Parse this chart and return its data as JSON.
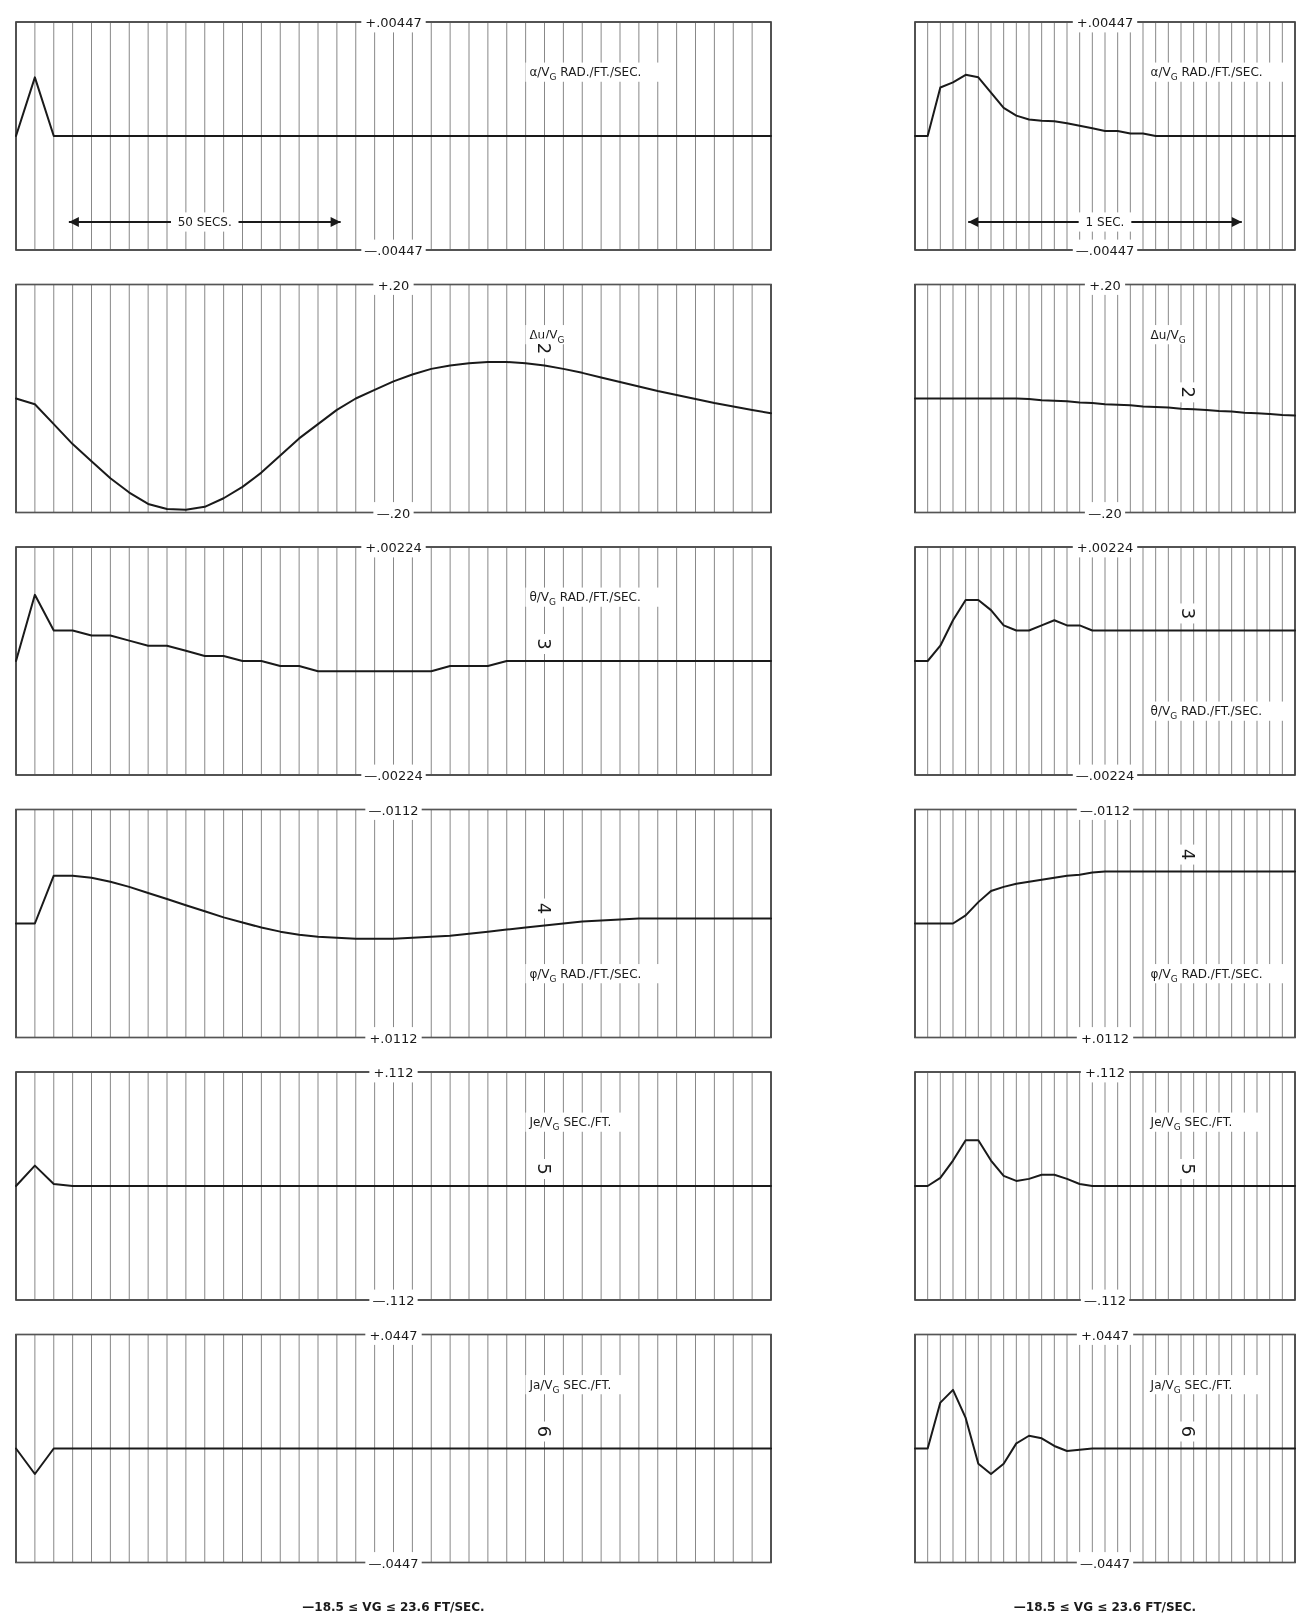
{
  "chart_data": [
    {
      "type": "line",
      "ylabel": "α/V$_{G}$ RAD./FT./SEC.",
      "xlabel": "50 SECS.",
      "categories": [
        null,
        null,
        null,
        null,
        null,
        null,
        null,
        null,
        null,
        null,
        null,
        null,
        null,
        null,
        null,
        null,
        null,
        null,
        null,
        null,
        null,
        null,
        null,
        null,
        null,
        null,
        null,
        null,
        null,
        null,
        null,
        null,
        null,
        null,
        null,
        null,
        null,
        null,
        null,
        null,
        null
      ],
      "series": [
        {
          "color": "#1a1a1a",
          "values": [
            0,
            0.0023,
            0,
            0,
            0,
            0,
            0,
            0,
            0,
            0,
            0,
            0,
            0,
            0,
            0,
            0,
            0,
            0,
            0,
            0,
            0,
            0,
            0,
            0,
            0,
            0,
            0,
            0,
            0,
            0,
            0,
            0,
            0,
            0,
            0,
            0,
            0,
            0,
            0,
            0,
            0
          ]
        }
      ],
      "ylim": [
        -0.00447,
        0.00447
      ],
      "yticks": [
        {
          "value": 0.00447,
          "label": "+.00447"
        },
        {
          "value": -0.00447,
          "label": "—.00447"
        }
      ],
      "tick_labels": "y",
      "grid": true
    },
    {
      "type": "line",
      "ylabel": "α/V$_{G}$ RAD./FT./SEC.",
      "xlabel": "1 SEC.",
      "categories": [
        null,
        null,
        null,
        null,
        null,
        null,
        null,
        null,
        null,
        null,
        null,
        null,
        null,
        null,
        null,
        null,
        null,
        null,
        null,
        null,
        null,
        null,
        null,
        null,
        null,
        null,
        null,
        null,
        null,
        null,
        null
      ],
      "series": [
        {
          "color": "#1a1a1a",
          "values": [
            0,
            0,
            0.0019,
            0.0021,
            0.0024,
            0.0023,
            0.0017,
            0.0011,
            0.0008,
            0.00065,
            0.0006,
            0.00058,
            0.0005,
            0.0004,
            0.0003,
            0.0002,
            0.0002,
            0.0001,
            0.0001,
            0,
            0,
            0,
            0,
            0,
            0,
            0,
            0,
            0,
            0,
            0,
            0
          ]
        }
      ],
      "ylim": [
        -0.00447,
        0.00447
      ],
      "yticks": [
        {
          "value": 0.00447,
          "label": "+.00447"
        },
        {
          "value": -0.00447,
          "label": "—.00447"
        }
      ],
      "tick_labels": "y",
      "grid": true
    },
    {
      "type": "line",
      "ylabel": "Δu/V$_{G}$",
      "categories": [
        null,
        null,
        null,
        null,
        null,
        null,
        null,
        null,
        null,
        null,
        null,
        null,
        null,
        null,
        null,
        null,
        null,
        null,
        null,
        null,
        null,
        null,
        null,
        null,
        null,
        null,
        null,
        null,
        null,
        null,
        null,
        null,
        null,
        null,
        null,
        null,
        null,
        null,
        null,
        null,
        null
      ],
      "series": [
        {
          "color": "#1a1a1a",
          "values": [
            0,
            -0.01,
            -0.045,
            -0.08,
            -0.11,
            -0.14,
            -0.165,
            -0.185,
            -0.194,
            -0.195,
            -0.19,
            -0.175,
            -0.155,
            -0.13,
            -0.1,
            -0.07,
            -0.045,
            -0.02,
            0,
            0.015,
            0.03,
            0.042,
            0.052,
            0.058,
            0.062,
            0.064,
            0.064,
            0.062,
            0.058,
            0.052,
            0.045,
            0.037,
            0.029,
            0.021,
            0.013,
            0.006,
            -0.001,
            -0.008,
            -0.014,
            -0.02,
            -0.026
          ]
        }
      ],
      "ylim": [
        -0.2,
        0.2
      ],
      "yticks": [
        {
          "value": 0.2,
          "label": "+.20"
        },
        {
          "value": -0.2,
          "label": "—.20"
        }
      ],
      "tick_labels": "y",
      "grid": true,
      "annotations": [
        "2"
      ]
    },
    {
      "type": "line",
      "ylabel": "Δu/V$_{G}$",
      "categories": [
        null,
        null,
        null,
        null,
        null,
        null,
        null,
        null,
        null,
        null,
        null,
        null,
        null,
        null,
        null,
        null,
        null,
        null,
        null,
        null,
        null,
        null,
        null,
        null,
        null,
        null,
        null,
        null,
        null,
        null,
        null
      ],
      "series": [
        {
          "color": "#1a1a1a",
          "values": [
            0,
            0,
            0,
            0,
            0,
            0,
            0,
            0,
            0,
            -0.001,
            -0.003,
            -0.004,
            -0.005,
            -0.007,
            -0.008,
            -0.01,
            -0.011,
            -0.012,
            -0.014,
            -0.015,
            -0.016,
            -0.018,
            -0.019,
            -0.02,
            -0.022,
            -0.023,
            -0.025,
            -0.026,
            -0.027,
            -0.029,
            -0.03
          ]
        }
      ],
      "ylim": [
        -0.2,
        0.2
      ],
      "yticks": [
        {
          "value": 0.2,
          "label": "+.20"
        },
        {
          "value": -0.2,
          "label": "—.20"
        }
      ],
      "tick_labels": "y",
      "grid": true,
      "annotations": [
        "2"
      ]
    },
    {
      "type": "line",
      "ylabel": "θ/V$_{G}$ RAD./FT./SEC.",
      "categories": [
        null,
        null,
        null,
        null,
        null,
        null,
        null,
        null,
        null,
        null,
        null,
        null,
        null,
        null,
        null,
        null,
        null,
        null,
        null,
        null,
        null,
        null,
        null,
        null,
        null,
        null,
        null,
        null,
        null,
        null,
        null,
        null,
        null,
        null,
        null,
        null,
        null,
        null,
        null,
        null,
        null
      ],
      "series": [
        {
          "color": "#1a1a1a",
          "values": [
            0,
            0.0013,
            0.0006,
            0.0006,
            0.0005,
            0.0005,
            0.0004,
            0.0003,
            0.0003,
            0.0002,
            0.0001,
            0.0001,
            0,
            0,
            -0.0001,
            -0.0001,
            -0.0002,
            -0.0002,
            -0.0002,
            -0.0002,
            -0.0002,
            -0.0002,
            -0.0002,
            -0.0001,
            -0.0001,
            -0.0001,
            0,
            0,
            0,
            0,
            0,
            0,
            0,
            0,
            0,
            0,
            0,
            0,
            0,
            0,
            0
          ]
        }
      ],
      "ylim": [
        -0.00224,
        0.00224
      ],
      "yticks": [
        {
          "value": 0.00224,
          "label": "+.00224"
        },
        {
          "value": -0.00224,
          "label": "—.00224"
        }
      ],
      "tick_labels": "y",
      "grid": true,
      "annotations": [
        "3"
      ]
    },
    {
      "type": "line",
      "ylabel": "θ/V$_{G}$ RAD./FT./SEC.",
      "categories": [
        null,
        null,
        null,
        null,
        null,
        null,
        null,
        null,
        null,
        null,
        null,
        null,
        null,
        null,
        null,
        null,
        null,
        null,
        null,
        null,
        null,
        null,
        null,
        null,
        null,
        null,
        null,
        null,
        null,
        null,
        null
      ],
      "series": [
        {
          "color": "#1a1a1a",
          "values": [
            0,
            0,
            0.0003,
            0.0008,
            0.0012,
            0.0012,
            0.001,
            0.0007,
            0.0006,
            0.0006,
            0.0007,
            0.0008,
            0.0007,
            0.0007,
            0.0006,
            0.0006,
            0.0006,
            0.0006,
            0.0006,
            0.0006,
            0.0006,
            0.0006,
            0.0006,
            0.0006,
            0.0006,
            0.0006,
            0.0006,
            0.0006,
            0.0006,
            0.0006,
            0.0006
          ]
        }
      ],
      "ylim": [
        -0.00224,
        0.00224
      ],
      "yticks": [
        {
          "value": 0.00224,
          "label": "+.00224"
        },
        {
          "value": -0.00224,
          "label": "—.00224"
        }
      ],
      "tick_labels": "y",
      "grid": true,
      "annotations": [
        "3"
      ]
    },
    {
      "type": "line",
      "ylabel": "φ/V$_{G}$ RAD./FT./SEC.",
      "categories": [
        null,
        null,
        null,
        null,
        null,
        null,
        null,
        null,
        null,
        null,
        null,
        null,
        null,
        null,
        null,
        null,
        null,
        null,
        null,
        null,
        null,
        null,
        null,
        null,
        null,
        null,
        null,
        null,
        null,
        null,
        null,
        null,
        null,
        null,
        null,
        null,
        null,
        null,
        null,
        null,
        null
      ],
      "series": [
        {
          "color": "#1a1a1a",
          "values": [
            0,
            0,
            -0.0047,
            -0.0047,
            -0.0045,
            -0.0041,
            -0.0036,
            -0.003,
            -0.0024,
            -0.0018,
            -0.0012,
            -0.0006,
            -0.0001,
            0.0004,
            0.0008,
            0.0011,
            0.0013,
            0.0014,
            0.0015,
            0.0015,
            0.0015,
            0.0014,
            0.0013,
            0.0012,
            0.001,
            0.0008,
            0.0006,
            0.0004,
            0.0002,
            0,
            -0.0002,
            -0.0003,
            -0.0004,
            -0.0005,
            -0.0005,
            -0.0005,
            -0.0005,
            -0.0005,
            -0.0005,
            -0.0005,
            -0.0005
          ]
        }
      ],
      "ylim": [
        0.0112,
        -0.0112
      ],
      "yticks": [
        {
          "value": -0.0112,
          "label": "—.0112"
        },
        {
          "value": 0.0112,
          "label": "+.0112"
        }
      ],
      "tick_labels": "y",
      "grid": true,
      "annotations": [
        "4"
      ]
    },
    {
      "type": "line",
      "ylabel": "φ/V$_{G}$ RAD./FT./SEC.",
      "categories": [
        null,
        null,
        null,
        null,
        null,
        null,
        null,
        null,
        null,
        null,
        null,
        null,
        null,
        null,
        null,
        null,
        null,
        null,
        null,
        null,
        null,
        null,
        null,
        null,
        null,
        null,
        null,
        null,
        null,
        null,
        null
      ],
      "series": [
        {
          "color": "#1a1a1a",
          "values": [
            0,
            0,
            0,
            0,
            -0.0008,
            -0.0021,
            -0.0032,
            -0.0036,
            -0.0039,
            -0.0041,
            -0.0043,
            -0.0045,
            -0.0047,
            -0.0048,
            -0.005,
            -0.0051,
            -0.0051,
            -0.0051,
            -0.0051,
            -0.0051,
            -0.0051,
            -0.0051,
            -0.0051,
            -0.0051,
            -0.0051,
            -0.0051,
            -0.0051,
            -0.0051,
            -0.0051,
            -0.0051,
            -0.0051
          ]
        }
      ],
      "ylim": [
        0.0112,
        -0.0112
      ],
      "yticks": [
        {
          "value": -0.0112,
          "label": "—.0112"
        },
        {
          "value": 0.0112,
          "label": "+.0112"
        }
      ],
      "tick_labels": "y",
      "grid": true,
      "annotations": [
        "4"
      ]
    },
    {
      "type": "line",
      "ylabel": "Je/V$_{G}$ SEC./FT.",
      "categories": [
        null,
        null,
        null,
        null,
        null,
        null,
        null,
        null,
        null,
        null,
        null,
        null,
        null,
        null,
        null,
        null,
        null,
        null,
        null,
        null,
        null,
        null,
        null,
        null,
        null,
        null,
        null,
        null,
        null,
        null,
        null,
        null,
        null,
        null,
        null,
        null,
        null,
        null,
        null,
        null,
        null
      ],
      "series": [
        {
          "color": "#1a1a1a",
          "values": [
            0,
            0.02,
            0.002,
            0,
            0,
            0,
            0,
            0,
            0,
            0,
            0,
            0,
            0,
            0,
            0,
            0,
            0,
            0,
            0,
            0,
            0,
            0,
            0,
            0,
            0,
            0,
            0,
            0,
            0,
            0,
            0,
            0,
            0,
            0,
            0,
            0,
            0,
            0,
            0,
            0,
            0
          ]
        }
      ],
      "ylim": [
        -0.112,
        0.112
      ],
      "yticks": [
        {
          "value": 0.112,
          "label": "+.112"
        },
        {
          "value": -0.112,
          "label": "—.112"
        }
      ],
      "tick_labels": "y",
      "grid": true,
      "annotations": [
        "5"
      ]
    },
    {
      "type": "line",
      "ylabel": "Je/V$_{G}$ SEC./FT.",
      "categories": [
        null,
        null,
        null,
        null,
        null,
        null,
        null,
        null,
        null,
        null,
        null,
        null,
        null,
        null,
        null,
        null,
        null,
        null,
        null,
        null,
        null,
        null,
        null,
        null,
        null,
        null,
        null,
        null,
        null,
        null,
        null
      ],
      "series": [
        {
          "color": "#1a1a1a",
          "values": [
            0,
            0,
            0.008,
            0.025,
            0.045,
            0.045,
            0.025,
            0.01,
            0.005,
            0.007,
            0.011,
            0.011,
            0.007,
            0.002,
            0,
            0,
            0,
            0,
            0,
            0,
            0,
            0,
            0,
            0,
            0,
            0,
            0,
            0,
            0,
            0,
            0
          ]
        }
      ],
      "ylim": [
        -0.112,
        0.112
      ],
      "yticks": [
        {
          "value": 0.112,
          "label": "+.112"
        },
        {
          "value": -0.112,
          "label": "—.112"
        }
      ],
      "tick_labels": "y",
      "grid": true,
      "annotations": [
        "5"
      ]
    },
    {
      "type": "line",
      "ylabel": "Ja/V$_{G}$ SEC./FT.",
      "categories": [
        null,
        null,
        null,
        null,
        null,
        null,
        null,
        null,
        null,
        null,
        null,
        null,
        null,
        null,
        null,
        null,
        null,
        null,
        null,
        null,
        null,
        null,
        null,
        null,
        null,
        null,
        null,
        null,
        null,
        null,
        null,
        null,
        null,
        null,
        null,
        null,
        null,
        null,
        null,
        null,
        null
      ],
      "series": [
        {
          "color": "#1a1a1a",
          "values": [
            0,
            -0.01,
            0,
            0,
            0,
            0,
            0,
            0,
            0,
            0,
            0,
            0,
            0,
            0,
            0,
            0,
            0,
            0,
            0,
            0,
            0,
            0,
            0,
            0,
            0,
            0,
            0,
            0,
            0,
            0,
            0,
            0,
            0,
            0,
            0,
            0,
            0,
            0,
            0,
            0,
            0
          ]
        }
      ],
      "ylim": [
        -0.0447,
        0.0447
      ],
      "yticks": [
        {
          "value": 0.0447,
          "label": "+.0447"
        },
        {
          "value": -0.0447,
          "label": "—.0447"
        }
      ],
      "tick_labels": "y",
      "grid": true,
      "annotations": [
        "6",
        "—18.5 ≤ VG ≤ 23.6  FT/SEC."
      ]
    },
    {
      "type": "line",
      "ylabel": "Ja/V$_{G}$ SEC./FT.",
      "categories": [
        null,
        null,
        null,
        null,
        null,
        null,
        null,
        null,
        null,
        null,
        null,
        null,
        null,
        null,
        null,
        null,
        null,
        null,
        null,
        null,
        null,
        null,
        null,
        null,
        null,
        null,
        null,
        null,
        null,
        null,
        null
      ],
      "series": [
        {
          "color": "#1a1a1a",
          "values": [
            0,
            0,
            0.018,
            0.023,
            0.012,
            -0.006,
            -0.01,
            -0.006,
            0.002,
            0.005,
            0.004,
            0.001,
            -0.001,
            -0.0005,
            0,
            0,
            0,
            0,
            0,
            0,
            0,
            0,
            0,
            0,
            0,
            0,
            0,
            0,
            0,
            0,
            0
          ]
        }
      ],
      "ylim": [
        -0.0447,
        0.0447
      ],
      "yticks": [
        {
          "value": 0.0447,
          "label": "+.0447"
        },
        {
          "value": -0.0447,
          "label": "—.0447"
        }
      ],
      "tick_labels": "y",
      "grid": true,
      "annotations": [
        "6",
        "—18.5 ≤ VG ≤ 23.6  FT/SEC."
      ]
    }
  ]
}
